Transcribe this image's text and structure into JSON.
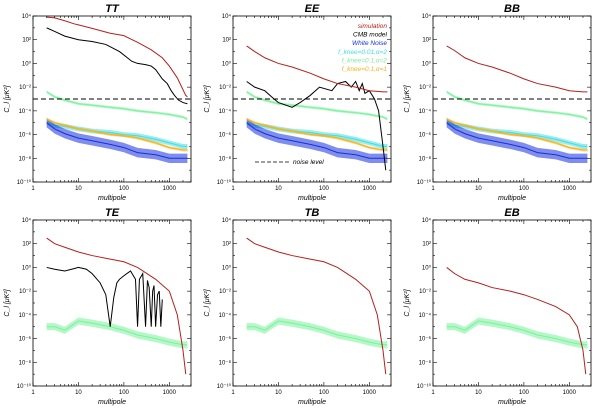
{
  "chart_data": [
    {
      "type": "line",
      "title": "TT",
      "xlabel": "multipole",
      "ylabel": "C_l [μK²]",
      "x_scale": "log",
      "y_scale": "log",
      "xlim": [
        1,
        3000
      ],
      "ylim": [
        1e-10,
        10000.0
      ],
      "noise_level": 0.001,
      "series": [
        {
          "key": "sim",
          "color": "#b41f1f",
          "x": [
            2,
            3,
            5,
            8,
            10,
            20,
            50,
            100,
            200,
            400,
            700,
            1000,
            1500,
            2000,
            2300,
            2500
          ],
          "y": [
            8000,
            7000,
            4000,
            2200,
            1800,
            900,
            350,
            220,
            60,
            14,
            3,
            0.6,
            0.06,
            0.006,
            0.002,
            0.0015
          ]
        },
        {
          "key": "cmb",
          "color": "#000000",
          "x": [
            2,
            3,
            5,
            10,
            20,
            40,
            80,
            150,
            200,
            300,
            400,
            500,
            700,
            900,
            1100,
            1300,
            1600,
            2000,
            2500
          ],
          "y": [
            1000,
            500,
            200,
            100,
            70,
            40,
            10,
            1.5,
            1,
            0.8,
            0.6,
            0.3,
            0.05,
            0.02,
            0.005,
            0.002,
            0.0008,
            0.0005,
            0.0004
          ]
        },
        {
          "key": "f001",
          "color": "#41dfe4",
          "x": [
            2,
            3,
            5,
            10,
            20,
            50,
            100,
            200,
            500,
            1000,
            2000,
            2500
          ],
          "y": [
            1e-05,
            6e-06,
            5e-06,
            3e-06,
            2e-06,
            1.5e-06,
            1e-06,
            8e-07,
            4e-07,
            2e-07,
            1e-07,
            1e-07
          ],
          "band": 1.6
        },
        {
          "key": "white",
          "color": "#1630dc",
          "x": [
            2,
            3,
            5,
            10,
            20,
            50,
            100,
            200,
            500,
            1000,
            2000,
            2500
          ],
          "y": [
            1e-05,
            3e-06,
            1.2e-06,
            5e-07,
            3e-07,
            1.5e-07,
            8e-08,
            3e-08,
            2e-08,
            1e-08,
            1e-08,
            1e-08
          ],
          "band": 2.5
        },
        {
          "key": "f01",
          "color": "#79f29b",
          "x": [
            2,
            3,
            5,
            10,
            20,
            50,
            100,
            200,
            500,
            1000,
            2000,
            2500
          ],
          "y": [
            0.004,
            0.0015,
            0.0008,
            0.0004,
            0.0003,
            0.0002,
            0.00015,
            0.0001,
            7e-05,
            5e-05,
            3e-05,
            2e-05
          ],
          "band": 1.3
        },
        {
          "key": "f01a1",
          "color": "#f7b21f",
          "x": [
            2,
            3,
            5,
            10,
            20,
            50,
            100,
            200,
            500,
            1000,
            2000,
            2500
          ],
          "y": [
            2e-05,
            1e-05,
            6e-06,
            3e-06,
            2e-06,
            1e-06,
            8e-07,
            5e-07,
            2e-07,
            8e-08,
            5e-08,
            5e-08
          ],
          "band": 1.3
        }
      ]
    },
    {
      "type": "line",
      "title": "EE",
      "xlabel": "multipole",
      "ylabel": "C_l [μK²]",
      "x_scale": "log",
      "y_scale": "log",
      "xlim": [
        1,
        3000
      ],
      "ylim": [
        1e-10,
        10000.0
      ],
      "noise_level": 0.001,
      "legend": {
        "placement": "top-right",
        "entries": [
          {
            "text": "simulation",
            "color": "#b41f1f"
          },
          {
            "text": "CMB model",
            "color": "#000000"
          },
          {
            "text": "White Noise",
            "color": "#1630dc"
          },
          {
            "text": "f_knee=0.01,α=2",
            "color": "#41dfe4"
          },
          {
            "text": "f_knee=0.1,α=2",
            "color": "#79f29b"
          },
          {
            "text": "f_knee=0.1,α=1",
            "color": "#f7b21f"
          }
        ],
        "noise_label": "noise level"
      },
      "series": [
        {
          "key": "sim",
          "color": "#b41f1f",
          "x": [
            2,
            3,
            5,
            10,
            20,
            50,
            100,
            200,
            500,
            1000,
            2000,
            2500
          ],
          "y": [
            30,
            10,
            3,
            1,
            0.5,
            0.15,
            0.05,
            0.02,
            0.01,
            0.005,
            0.004,
            0.004
          ]
        },
        {
          "key": "cmb",
          "color": "#000000",
          "x": [
            2,
            3,
            5,
            8,
            10,
            20,
            30,
            50,
            80,
            150,
            200,
            300,
            400,
            500,
            600,
            700,
            800,
            1000,
            1300,
            1600,
            2000,
            2300
          ],
          "y": [
            0.03,
            0.01,
            0.005,
            0.001,
            0.0005,
            0.0002,
            0.0005,
            0.002,
            0.01,
            0.005,
            0.02,
            0.03,
            0.01,
            0.03,
            0.005,
            0.02,
            0.003,
            0.005,
            0.001,
            0.0001,
            1e-07,
            1e-09
          ]
        },
        {
          "key": "f001",
          "color": "#41dfe4",
          "x": [
            2,
            3,
            5,
            10,
            20,
            50,
            100,
            200,
            500,
            1000,
            2000,
            2500
          ],
          "y": [
            1e-05,
            6e-06,
            5e-06,
            3e-06,
            2e-06,
            1.5e-06,
            1e-06,
            8e-07,
            4e-07,
            2e-07,
            1e-07,
            1e-07
          ],
          "band": 1.6
        },
        {
          "key": "white",
          "color": "#1630dc",
          "x": [
            2,
            3,
            5,
            10,
            20,
            50,
            100,
            200,
            500,
            1000,
            2000,
            2500
          ],
          "y": [
            1e-05,
            3e-06,
            1.2e-06,
            5e-07,
            3e-07,
            1.5e-07,
            8e-08,
            3e-08,
            2e-08,
            1e-08,
            1e-08,
            1e-08
          ],
          "band": 2.5
        },
        {
          "key": "f01",
          "color": "#79f29b",
          "x": [
            2,
            3,
            5,
            10,
            20,
            50,
            100,
            200,
            500,
            1000,
            2000,
            2500
          ],
          "y": [
            0.004,
            0.0015,
            0.0008,
            0.0004,
            0.0003,
            0.0002,
            0.00015,
            0.0001,
            7e-05,
            5e-05,
            3e-05,
            2e-05
          ],
          "band": 1.3
        },
        {
          "key": "f01a1",
          "color": "#f7b21f",
          "x": [
            2,
            3,
            5,
            10,
            20,
            50,
            100,
            200,
            500,
            1000,
            2000,
            2500
          ],
          "y": [
            2e-05,
            1e-05,
            6e-06,
            3e-06,
            2e-06,
            1e-06,
            8e-07,
            5e-07,
            2e-07,
            8e-08,
            5e-08,
            5e-08
          ],
          "band": 1.3
        }
      ]
    },
    {
      "type": "line",
      "title": "BB",
      "xlabel": "multipole",
      "ylabel": "C_l [μK²]",
      "x_scale": "log",
      "y_scale": "log",
      "xlim": [
        1,
        3000
      ],
      "ylim": [
        1e-10,
        10000.0
      ],
      "noise_level": 0.001,
      "series": [
        {
          "key": "sim",
          "color": "#b41f1f",
          "x": [
            2,
            3,
            5,
            10,
            20,
            50,
            100,
            200,
            500,
            1000,
            2000,
            2500
          ],
          "y": [
            30,
            12,
            3,
            1,
            0.5,
            0.15,
            0.05,
            0.02,
            0.01,
            0.005,
            0.004,
            0.004
          ]
        },
        {
          "key": "f001",
          "color": "#41dfe4",
          "x": [
            2,
            3,
            5,
            10,
            20,
            50,
            100,
            200,
            500,
            1000,
            2000,
            2500
          ],
          "y": [
            1e-05,
            6e-06,
            5e-06,
            3e-06,
            2e-06,
            1.5e-06,
            1e-06,
            8e-07,
            4e-07,
            2e-07,
            1e-07,
            1e-07
          ],
          "band": 1.6
        },
        {
          "key": "white",
          "color": "#1630dc",
          "x": [
            2,
            3,
            5,
            10,
            20,
            50,
            100,
            200,
            500,
            1000,
            2000,
            2500
          ],
          "y": [
            1e-05,
            3e-06,
            1.2e-06,
            5e-07,
            3e-07,
            1.5e-07,
            8e-08,
            3e-08,
            2e-08,
            1e-08,
            1e-08,
            1e-08
          ],
          "band": 2.5
        },
        {
          "key": "f01",
          "color": "#79f29b",
          "x": [
            2,
            3,
            5,
            10,
            20,
            50,
            100,
            200,
            500,
            1000,
            2000,
            2500
          ],
          "y": [
            0.004,
            0.0015,
            0.0008,
            0.0004,
            0.0003,
            0.0002,
            0.00015,
            0.0001,
            7e-05,
            5e-05,
            3e-05,
            2e-05
          ],
          "band": 1.3
        },
        {
          "key": "f01a1",
          "color": "#f7b21f",
          "x": [
            2,
            3,
            5,
            10,
            20,
            50,
            100,
            200,
            500,
            1000,
            2000,
            2500
          ],
          "y": [
            2e-05,
            1e-05,
            6e-06,
            3e-06,
            2e-06,
            1e-06,
            8e-07,
            5e-07,
            2e-07,
            8e-08,
            5e-08,
            5e-08
          ],
          "band": 1.3
        }
      ]
    },
    {
      "type": "line",
      "title": "TE",
      "xlabel": "multipole",
      "ylabel": "C_l [μK²]",
      "x_scale": "log",
      "y_scale": "log",
      "xlim": [
        1,
        3000
      ],
      "ylim": [
        1e-10,
        10000.0
      ],
      "series": [
        {
          "key": "sim",
          "color": "#b41f1f",
          "x": [
            2,
            3,
            5,
            10,
            20,
            50,
            100,
            200,
            500,
            1000,
            1500,
            2000,
            2300
          ],
          "y": [
            300,
            100,
            50,
            20,
            10,
            5,
            3,
            1,
            0.1,
            0.01,
            0.0001,
            1e-07,
            1e-09
          ]
        },
        {
          "key": "cmb",
          "color": "#000000",
          "x": [
            2,
            3,
            5,
            8,
            10,
            15,
            20,
            30,
            40,
            50,
            60,
            70,
            80,
            100,
            140,
            180,
            200,
            220,
            260,
            300,
            330,
            360,
            400,
            430,
            460,
            500,
            550,
            600,
            650,
            700
          ],
          "y": [
            1,
            0.7,
            0.5,
            0.8,
            1,
            0.7,
            0.3,
            0.05,
            0.005,
            1e-05,
            0.003,
            0.05,
            0.1,
            0.2,
            0.5,
            0.1,
            1e-05,
            0.1,
            0.3,
            1e-05,
            0.08,
            0.02,
            1e-05,
            0.01,
            0.03,
            1e-05,
            0.005,
            0.01,
            1e-05,
            0.002
          ]
        },
        {
          "key": "f01",
          "color": "#79f29b",
          "x": [
            2,
            3,
            5,
            10,
            20,
            50,
            100,
            200,
            500,
            1000,
            2000,
            2500
          ],
          "y": [
            1e-05,
            1e-05,
            5e-06,
            3e-05,
            2e-05,
            1e-05,
            5e-06,
            2e-06,
            1e-06,
            5e-07,
            3e-07,
            3e-07
          ],
          "band": 2
        }
      ]
    },
    {
      "type": "line",
      "title": "TB",
      "xlabel": "multipole",
      "ylabel": "C_l [μK²]",
      "x_scale": "log",
      "y_scale": "log",
      "xlim": [
        1,
        3000
      ],
      "ylim": [
        1e-10,
        10000.0
      ],
      "series": [
        {
          "key": "sim",
          "color": "#b41f1f",
          "x": [
            2,
            3,
            5,
            10,
            20,
            50,
            100,
            200,
            500,
            1000,
            1500,
            2000,
            2300
          ],
          "y": [
            300,
            100,
            50,
            20,
            10,
            5,
            3,
            1,
            0.1,
            0.01,
            0.0001,
            1e-07,
            1e-09
          ]
        },
        {
          "key": "f01",
          "color": "#79f29b",
          "x": [
            2,
            3,
            5,
            10,
            20,
            50,
            100,
            200,
            500,
            1000,
            2000,
            2500
          ],
          "y": [
            1e-05,
            1e-05,
            5e-06,
            3e-05,
            2e-05,
            1e-05,
            5e-06,
            2e-06,
            1e-06,
            5e-07,
            3e-07,
            3e-07
          ],
          "band": 2
        }
      ]
    },
    {
      "type": "line",
      "title": "EB",
      "xlabel": "multipole",
      "ylabel": "C_l [μK²]",
      "x_scale": "log",
      "y_scale": "log",
      "xlim": [
        1,
        3000
      ],
      "ylim": [
        1e-10,
        10000.0
      ],
      "series": [
        {
          "key": "sim",
          "color": "#b41f1f",
          "x": [
            2,
            3,
            5,
            10,
            20,
            50,
            100,
            200,
            500,
            1000,
            1500,
            2000,
            2300
          ],
          "y": [
            1,
            0.3,
            0.1,
            0.05,
            0.02,
            0.01,
            0.005,
            0.002,
            0.0005,
            0.0001,
            1e-05,
            1e-07,
            1e-09
          ]
        },
        {
          "key": "f01",
          "color": "#79f29b",
          "x": [
            2,
            3,
            5,
            10,
            20,
            50,
            100,
            200,
            500,
            1000,
            2000,
            2500
          ],
          "y": [
            1e-05,
            1e-05,
            5e-06,
            3e-05,
            2e-05,
            1e-05,
            5e-06,
            2e-06,
            1e-06,
            5e-07,
            3e-07,
            3e-07
          ],
          "band": 2
        }
      ]
    }
  ],
  "tick_labels": {
    "x": [
      "1",
      "10",
      "100",
      "1000"
    ],
    "y": [
      "10⁻¹⁰",
      "10⁻⁸",
      "10⁻⁶",
      "10⁻⁴",
      "10⁻²",
      "10⁰",
      "10²",
      "10⁴"
    ]
  }
}
